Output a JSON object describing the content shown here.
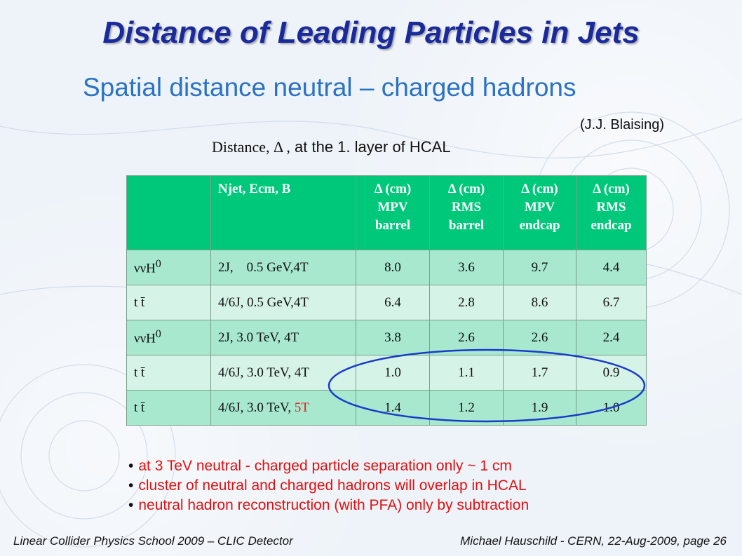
{
  "title": "Distance of Leading Particles in Jets",
  "subtitle": "Spatial distance neutral – charged hadrons",
  "credit": "(J.J. Blaising)",
  "caption": {
    "prefix": "Distance, Δ ,",
    "suffix": "at the 1. layer of HCAL"
  },
  "table": {
    "header_lines": [
      [
        ""
      ],
      [
        "Njet, Ecm, B"
      ],
      [
        "Δ (cm)",
        "MPV",
        "barrel"
      ],
      [
        "Δ (cm)",
        "RMS",
        "barrel"
      ],
      [
        "Δ  (cm)",
        "MPV",
        "endcap"
      ],
      [
        "Δ  (cm)",
        "RMS",
        "endcap"
      ]
    ],
    "rows": [
      {
        "process": "ννH",
        "process_sup": "0",
        "config": "2J,    0.5 GeV,4T",
        "config_hl": "",
        "values": [
          "8.0",
          "3.6",
          "9.7",
          "4.4"
        ]
      },
      {
        "process": "t t̄",
        "process_sup": "",
        "config": "4/6J, 0.5 GeV,4T",
        "config_hl": "",
        "values": [
          "6.4",
          "2.8",
          "8.6",
          "6.7"
        ]
      },
      {
        "process": "ννH",
        "process_sup": "0",
        "config": "2J, 3.0 TeV, 4T",
        "config_hl": "",
        "values": [
          "3.8",
          "2.6",
          "2.6",
          "2.4"
        ]
      },
      {
        "process": "t t̄",
        "process_sup": "",
        "config": "4/6J, 3.0 TeV, 4T",
        "config_hl": "",
        "values": [
          "1.0",
          "1.1",
          "1.7",
          "0.9"
        ]
      },
      {
        "process": "t t̄",
        "process_sup": "",
        "config": "4/6J, 3.0 TeV, ",
        "config_hl": "5T",
        "values": [
          "1.4",
          "1.2",
          "1.9",
          "1.0"
        ]
      }
    ]
  },
  "bullets": [
    "at 3 TeV neutral - charged particle separation only ~ 1 cm",
    "cluster of neutral and charged hadrons will overlap in HCAL",
    "neutral hadron reconstruction (with PFA) only by subtraction"
  ],
  "footer": {
    "left": "Linear Collider Physics School 2009 – CLIC Detector",
    "right": "Michael Hauschild - CERN,  22-Aug-2009,  page 26"
  },
  "colors": {
    "title": "#1a2a9a",
    "subtitle": "#2a72c4",
    "header_bg": "#00c87a",
    "row_odd": "#a7e8cf",
    "row_even": "#d6f3e7",
    "bullet_text": "#e01010",
    "ellipse": "#1a3ac8"
  }
}
